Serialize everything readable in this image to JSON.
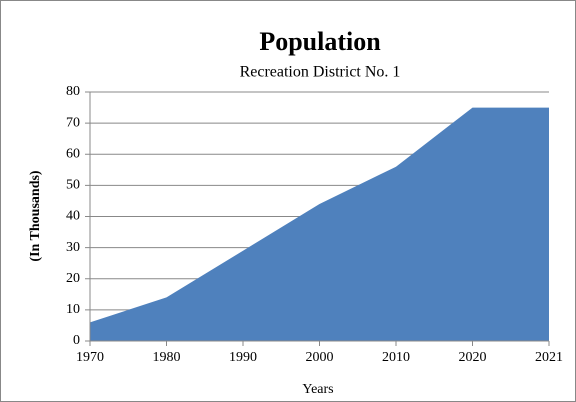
{
  "chart_data": {
    "type": "area",
    "title": "Population",
    "subtitle": "Recreation District No. 1",
    "x_label": "Years",
    "y_label": "(In Thousands)",
    "categories": [
      "1970",
      "1980",
      "1990",
      "2000",
      "2010",
      "2020",
      "2021"
    ],
    "values": [
      6,
      14,
      29,
      44,
      56,
      75,
      75
    ],
    "color": "#4f81bd",
    "ylim": [
      0,
      80
    ],
    "yticks": [
      0,
      10,
      20,
      30,
      40,
      50,
      60,
      70,
      80
    ],
    "grid": true
  }
}
